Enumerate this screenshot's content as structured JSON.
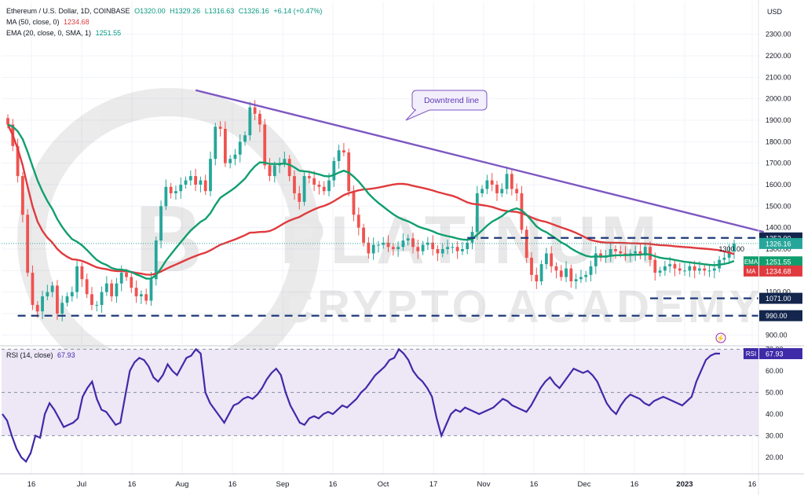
{
  "header": {
    "symbol": "Ethereum / U.S. Dollar, 1D, COINBASE",
    "open": "O1320.00",
    "high": "H1329.26",
    "low": "L1316.63",
    "close": "C1326.16",
    "change": "+6.14 (+0.47%)",
    "ma_label": "MA (50, close, 0)",
    "ma_value": "1234.68",
    "ema_label": "EMA (20, close, 0, SMA, 1)",
    "ema_value": "1251.55",
    "rsi_label": "RSI (14, close)",
    "rsi_value": "67.93"
  },
  "watermark": {
    "line1": "PLATINUM",
    "line2": "CRYPTO ACADEMY"
  },
  "colors": {
    "bull": "#26a69a",
    "bear": "#ef5350",
    "ma": "#e03a3e",
    "ema": "#119e6f",
    "trend": "#7e57c2",
    "rsi": "#3f2aa8",
    "support": "#1e3a78",
    "rsi_band": "#ede7f6"
  },
  "chart_data": [
    {
      "type": "candlestick",
      "title": "Ethereum / U.S. Dollar, 1D, COINBASE",
      "ylabel": "USD",
      "ylim": [
        850,
        2350
      ],
      "yticks": [
        900,
        1000,
        1100,
        1200,
        1300,
        1400,
        1500,
        1600,
        1700,
        1800,
        1900,
        2000,
        2100,
        2200,
        2300
      ],
      "xticks": [
        "16",
        "Jul",
        "16",
        "Aug",
        "16",
        "Sep",
        "16",
        "Oct",
        "17",
        "Nov",
        "16",
        "Dec",
        "16",
        "2023",
        "16"
      ],
      "close_series": [
        1880,
        1780,
        1640,
        1460,
        1190,
        1040,
        1010,
        1080,
        1100,
        1130,
        1000,
        1050,
        1080,
        1100,
        1220,
        1160,
        1090,
        1040,
        1040,
        1100,
        1140,
        1080,
        1140,
        1190,
        1170,
        1120,
        1080,
        1090,
        1060,
        1160,
        1340,
        1500,
        1590,
        1560,
        1570,
        1600,
        1620,
        1640,
        1600,
        1620,
        1570,
        1720,
        1870,
        1860,
        1700,
        1720,
        1740,
        1800,
        1830,
        1960,
        1930,
        1880,
        1690,
        1640,
        1690,
        1700,
        1720,
        1640,
        1560,
        1520,
        1640,
        1630,
        1600,
        1590,
        1570,
        1620,
        1710,
        1760,
        1750,
        1570,
        1460,
        1400,
        1330,
        1280,
        1320,
        1320,
        1330,
        1310,
        1300,
        1310,
        1340,
        1350,
        1310,
        1290,
        1320,
        1330,
        1300,
        1280,
        1300,
        1310,
        1310,
        1290,
        1300,
        1330,
        1380,
        1560,
        1580,
        1620,
        1600,
        1560,
        1580,
        1650,
        1580,
        1560,
        1390,
        1260,
        1180,
        1150,
        1230,
        1280,
        1220,
        1200,
        1170,
        1210,
        1150,
        1160,
        1170,
        1180,
        1220,
        1280,
        1260,
        1270,
        1300,
        1290,
        1280,
        1270,
        1280,
        1290,
        1270,
        1310,
        1250,
        1190,
        1200,
        1220,
        1230,
        1210,
        1200,
        1200,
        1220,
        1200,
        1210,
        1200,
        1200,
        1210,
        1250,
        1260,
        1290,
        1326
      ],
      "series": [
        {
          "name": "MA (50, close, 0)",
          "last": 1234.68
        },
        {
          "name": "EMA (20, close, 0, SMA, 1)",
          "last": 1251.55
        }
      ],
      "price_labels": [
        {
          "text": "1352.00",
          "value": 1352
        },
        {
          "text": "1326.16",
          "value": 1326.16
        },
        {
          "text": "1251.55",
          "value": 1251.55,
          "tag": "EMA"
        },
        {
          "text": "1234.68",
          "value": 1234.68,
          "tag": "MA"
        },
        {
          "text": "1071.00",
          "value": 1071
        },
        {
          "text": "990.00",
          "value": 990
        }
      ],
      "hlines": [
        {
          "value": 1352,
          "from": 93
        },
        {
          "value": 1071,
          "from": 130
        },
        {
          "value": 990,
          "from": 2
        }
      ],
      "trendline": {
        "label": "Downtrend line",
        "from": [
          38,
          2040
        ],
        "to": [
          153,
          1380
        ]
      },
      "overlay_label": "1300.00"
    },
    {
      "type": "line",
      "title": "RSI (14, close)",
      "ylim": [
        15,
        75
      ],
      "yticks": [
        20,
        30,
        40,
        50,
        60,
        70
      ],
      "band": [
        30,
        70
      ],
      "values": [
        40,
        37,
        30,
        24,
        20,
        18,
        22,
        30,
        29,
        40,
        45,
        42,
        38,
        34,
        35,
        36,
        38,
        48,
        52,
        55,
        47,
        42,
        41,
        38,
        35,
        36,
        48,
        60,
        64,
        66,
        65,
        62,
        57,
        55,
        58,
        63,
        60,
        58,
        62,
        66,
        67,
        70,
        68,
        50,
        45,
        42,
        39,
        36,
        40,
        44,
        45,
        47,
        48,
        47,
        49,
        52,
        56,
        59,
        61,
        58,
        50,
        44,
        40,
        36,
        35,
        38,
        39,
        38,
        40,
        41,
        40,
        42,
        44,
        43,
        45,
        47,
        50,
        52,
        55,
        58,
        60,
        62,
        65,
        66,
        70,
        68,
        65,
        60,
        57,
        55,
        52,
        48,
        38,
        30,
        35,
        40,
        42,
        41,
        43,
        42,
        41,
        40,
        41,
        42,
        43,
        45,
        47,
        46,
        44,
        43,
        42,
        41,
        44,
        48,
        52,
        55,
        57,
        54,
        52,
        55,
        58,
        61,
        60,
        59,
        60,
        58,
        55,
        50,
        45,
        42,
        40,
        44,
        47,
        49,
        48,
        47,
        45,
        44,
        46,
        47,
        48,
        47,
        46,
        45,
        44,
        46,
        48,
        55,
        60,
        65,
        67,
        68,
        67.93
      ]
    }
  ]
}
